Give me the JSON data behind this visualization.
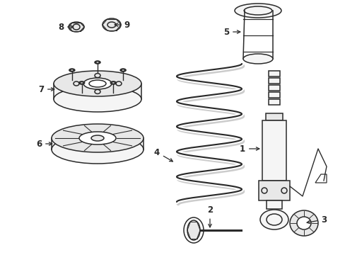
{
  "background_color": "#ffffff",
  "line_color": "#2a2a2a",
  "line_width": 1.1,
  "label_fontsize": 8.5,
  "figsize": [
    4.89,
    3.6
  ],
  "dpi": 100
}
